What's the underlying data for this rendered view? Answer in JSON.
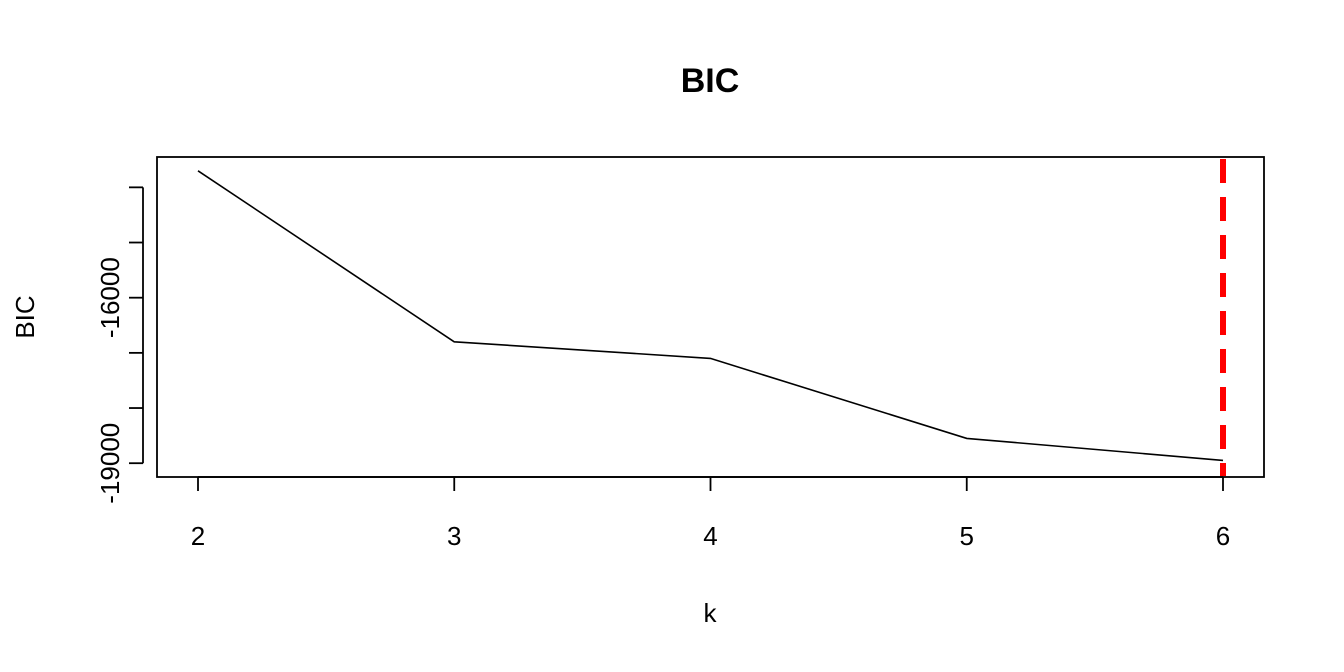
{
  "chart_data": {
    "type": "line",
    "title": "BIC",
    "xlabel": "k",
    "ylabel": "BIC",
    "x": [
      2,
      3,
      4,
      5,
      6
    ],
    "series": [
      {
        "values": [
          -13700,
          -16800,
          -17100,
          -18550,
          -18950
        ],
        "color": "#000000"
      }
    ],
    "xticks": [
      2,
      3,
      4,
      5,
      6
    ],
    "yticks": [
      -14000,
      -15000,
      -16000,
      -17000,
      -18000,
      -19000
    ],
    "ytick_labels": [
      "",
      "",
      "-16000",
      "",
      "",
      "-19000"
    ],
    "xlim": [
      1.84,
      6.16
    ],
    "ylim": [
      -19250,
      -13450
    ],
    "reference_lines": [
      {
        "orientation": "vertical",
        "x": 6,
        "style": "dashed",
        "color": "#ff0000"
      }
    ],
    "grid": false,
    "legend": "none"
  }
}
